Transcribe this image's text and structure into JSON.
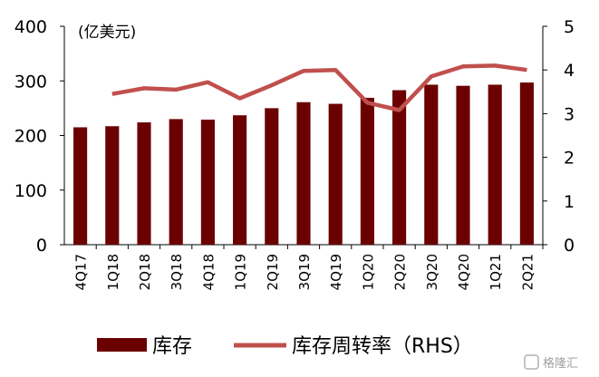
{
  "chart_data": {
    "type": "bar",
    "categories": [
      "4Q17",
      "1Q18",
      "2Q18",
      "3Q18",
      "4Q18",
      "1Q19",
      "2Q19",
      "3Q19",
      "4Q19",
      "1Q20",
      "2Q20",
      "3Q20",
      "4Q20",
      "1Q21",
      "2Q21"
    ],
    "unit_label": "(亿美元)",
    "series": [
      {
        "name": "库存",
        "type": "bar",
        "axis": "left",
        "values": [
          215,
          217,
          224,
          230,
          229,
          237,
          250,
          261,
          258,
          269,
          283,
          293,
          291,
          293,
          297
        ]
      },
      {
        "name": "库存周转率（RHS）",
        "type": "line",
        "axis": "right",
        "values": [
          null,
          3.45,
          3.58,
          3.55,
          3.72,
          3.35,
          3.65,
          3.98,
          4.0,
          3.25,
          3.08,
          3.85,
          4.08,
          4.1,
          4.0
        ]
      }
    ],
    "ylim_left": [
      0,
      400
    ],
    "yticks_left": [
      "0",
      "100",
      "200",
      "300",
      "400"
    ],
    "ylim_right": [
      0,
      5
    ],
    "yticks_right": [
      "0",
      "1",
      "2",
      "3",
      "4",
      "5"
    ],
    "colors": {
      "bar": "#6b0000",
      "line": "#c0504d"
    },
    "legend_position": "bottom",
    "grid": false
  },
  "watermark": "格隆汇"
}
